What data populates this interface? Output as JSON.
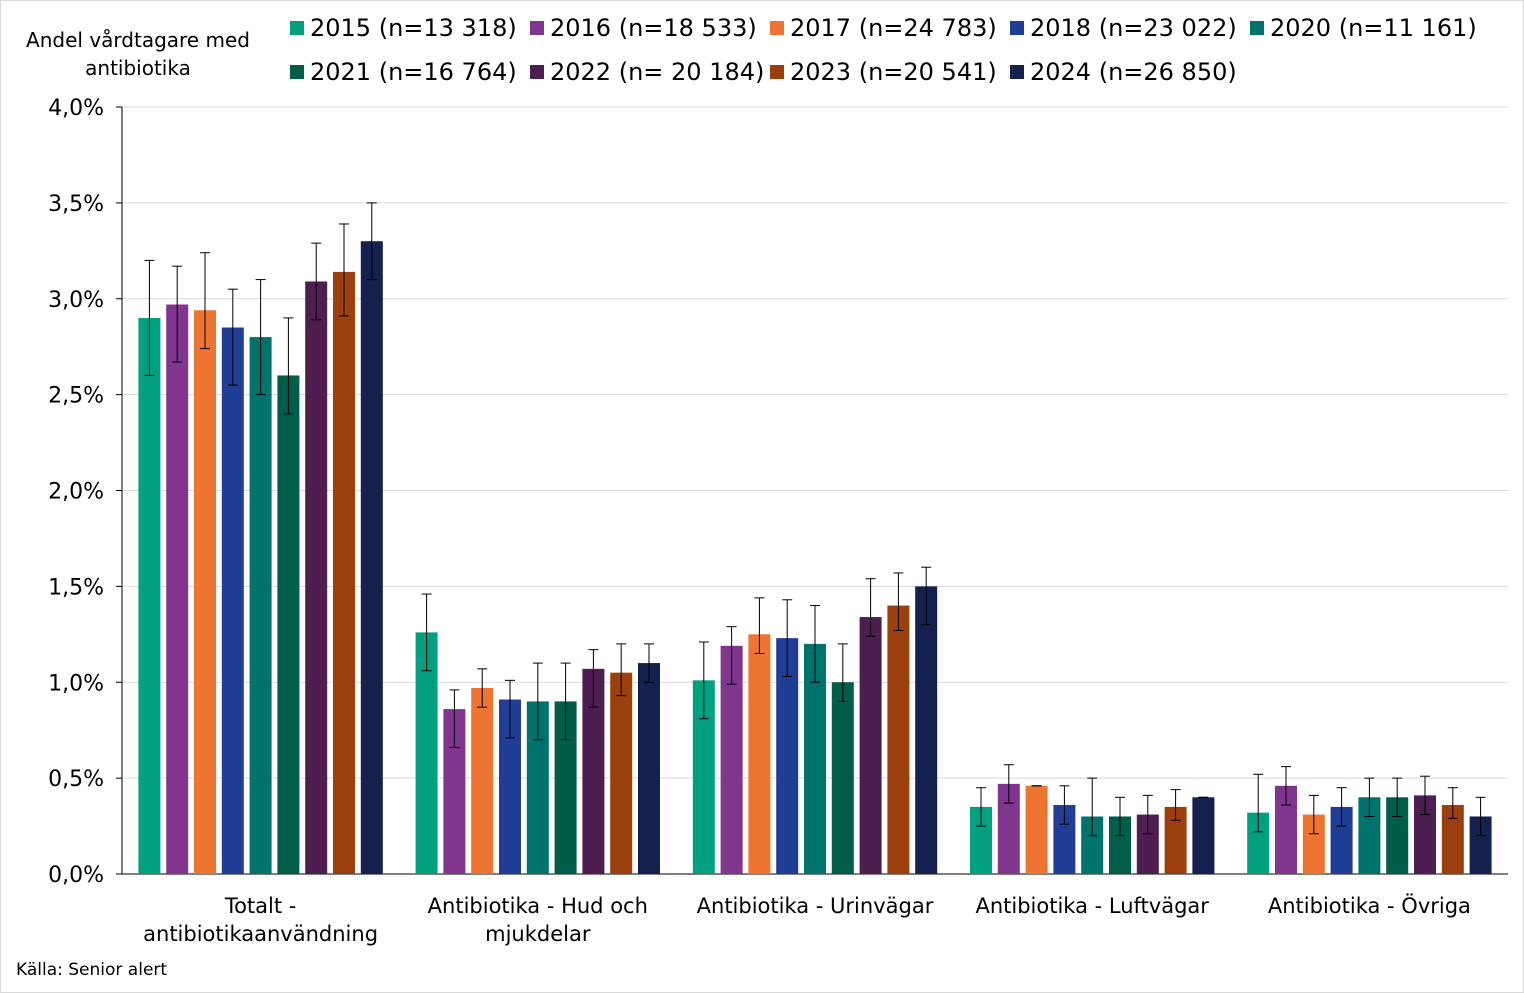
{
  "chart_data": {
    "type": "bar",
    "ylabel": "Andel vårdtagare med antibiotika",
    "source": "Källa: Senior alert",
    "ylim": [
      0,
      0.04
    ],
    "yticks": [
      {
        "value": 0.0,
        "label": "0,0%"
      },
      {
        "value": 0.005,
        "label": "0,5%"
      },
      {
        "value": 0.01,
        "label": "1,0%"
      },
      {
        "value": 0.015,
        "label": "1,5%"
      },
      {
        "value": 0.02,
        "label": "2,0%"
      },
      {
        "value": 0.025,
        "label": "2,5%"
      },
      {
        "value": 0.03,
        "label": "3,0%"
      },
      {
        "value": 0.035,
        "label": "3,5%"
      },
      {
        "value": 0.04,
        "label": "4,0%"
      }
    ],
    "grid": true,
    "legend_position": "top",
    "categories": [
      {
        "lines": [
          "Totalt -",
          "antibiotikaanvändning"
        ]
      },
      {
        "lines": [
          "Antibiotika - Hud och",
          "mjukdelar"
        ]
      },
      {
        "lines": [
          "Antibiotika - Urinvägar"
        ]
      },
      {
        "lines": [
          "Antibiotika - Luftvägar"
        ]
      },
      {
        "lines": [
          "Antibiotika - Övriga"
        ]
      }
    ],
    "series": [
      {
        "name": "2015 (n=13 318)",
        "color": "#00A080",
        "values": [
          0.029,
          0.0126,
          0.0101,
          0.0035,
          0.0032
        ],
        "err_low": [
          0.026,
          0.0106,
          0.0081,
          0.0025,
          0.0022
        ],
        "err_high": [
          0.032,
          0.0146,
          0.0121,
          0.0045,
          0.0052
        ]
      },
      {
        "name": "2016 (n=18 533)",
        "color": "#80368E",
        "values": [
          0.0297,
          0.0086,
          0.0119,
          0.0047,
          0.0046
        ],
        "err_low": [
          0.0267,
          0.0066,
          0.0099,
          0.0037,
          0.0036
        ],
        "err_high": [
          0.0317,
          0.0096,
          0.0129,
          0.0057,
          0.0056
        ]
      },
      {
        "name": "2017 (n=24 783)",
        "color": "#EE7432",
        "values": [
          0.0294,
          0.0097,
          0.0125,
          0.0046,
          0.0031
        ],
        "err_low": [
          0.0274,
          0.0087,
          0.0115,
          0.0046,
          0.0021
        ],
        "err_high": [
          0.0324,
          0.0107,
          0.0144,
          0.0046,
          0.0041
        ]
      },
      {
        "name": "2018 (n=23 022)",
        "color": "#213E96",
        "values": [
          0.0285,
          0.0091,
          0.0123,
          0.0036,
          0.0035
        ],
        "err_low": [
          0.0255,
          0.0071,
          0.0103,
          0.0026,
          0.0025
        ],
        "err_high": [
          0.0305,
          0.0101,
          0.0143,
          0.0046,
          0.0045
        ]
      },
      {
        "name": "2020 (n=11 161)",
        "color": "#00736C",
        "values": [
          0.028,
          0.009,
          0.012,
          0.003,
          0.004
        ],
        "err_low": [
          0.025,
          0.007,
          0.01,
          0.002,
          0.003
        ],
        "err_high": [
          0.031,
          0.011,
          0.014,
          0.005,
          0.005
        ]
      },
      {
        "name": "2021 (n=16 764)",
        "color": "#005E48",
        "values": [
          0.026,
          0.009,
          0.01,
          0.003,
          0.004
        ],
        "err_low": [
          0.024,
          0.007,
          0.009,
          0.002,
          0.003
        ],
        "err_high": [
          0.029,
          0.011,
          0.012,
          0.004,
          0.005
        ]
      },
      {
        "name": "2022 (n= 20 184)",
        "color": "#4E1E51",
        "values": [
          0.0309,
          0.0107,
          0.0134,
          0.0031,
          0.0041
        ],
        "err_low": [
          0.0289,
          0.0087,
          0.0124,
          0.0021,
          0.0031
        ],
        "err_high": [
          0.0329,
          0.0117,
          0.0154,
          0.0041,
          0.0051
        ]
      },
      {
        "name": "2023 (n=20 541)",
        "color": "#9B400C",
        "values": [
          0.0314,
          0.0105,
          0.014,
          0.0035,
          0.0036
        ],
        "err_low": [
          0.0291,
          0.0093,
          0.0127,
          0.0028,
          0.0029
        ],
        "err_high": [
          0.0339,
          0.012,
          0.0157,
          0.0044,
          0.0045
        ]
      },
      {
        "name": "2024 (n=26 850)",
        "color": "#14214F",
        "values": [
          0.033,
          0.011,
          0.015,
          0.004,
          0.003
        ],
        "err_low": [
          0.031,
          0.01,
          0.013,
          0.004,
          0.002
        ],
        "err_high": [
          0.035,
          0.012,
          0.016,
          0.004,
          0.004
        ]
      }
    ]
  }
}
